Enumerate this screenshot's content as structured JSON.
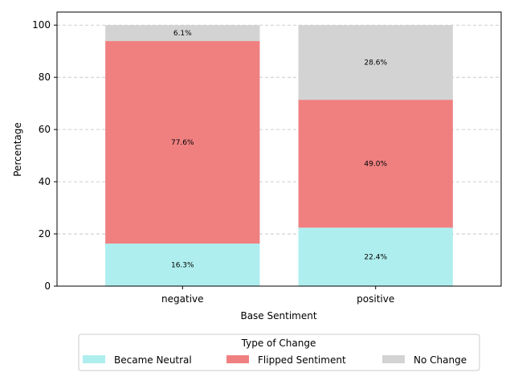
{
  "chart_data": {
    "type": "bar",
    "stacked": true,
    "categories": [
      "negative",
      "positive"
    ],
    "series": [
      {
        "name": "Became Neutral",
        "values": [
          16.3,
          22.4
        ],
        "labels": [
          "16.3%",
          "22.4%"
        ],
        "color": "#afeeee"
      },
      {
        "name": "Flipped Sentiment",
        "values": [
          77.6,
          49.0
        ],
        "labels": [
          "77.6%",
          "49.0%"
        ],
        "color": "#f08080"
      },
      {
        "name": "No Change",
        "values": [
          6.1,
          28.6
        ],
        "labels": [
          "6.1%",
          "28.6%"
        ],
        "color": "#d3d3d3"
      }
    ],
    "xlabel": "Base Sentiment",
    "ylabel": "Percentage",
    "ylim": [
      0,
      105
    ],
    "yticks": [
      0,
      20,
      40,
      60,
      80,
      100
    ],
    "grid": "y-dashed",
    "legend": {
      "title": "Type of Change",
      "placement": "bottom-center"
    }
  }
}
